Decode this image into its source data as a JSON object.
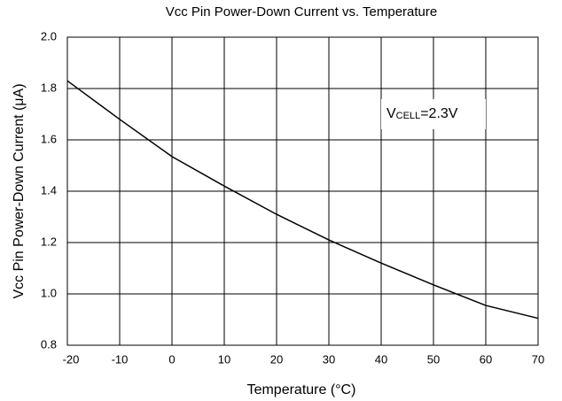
{
  "chart_data": {
    "type": "line",
    "title": "Vcc Pin Power-Down Current vs. Temperature",
    "xlabel": "Temperature (°C)",
    "ylabel": "Vcc Pin Power-Down Current (μA)",
    "annotation": {
      "main": "V",
      "sub": "CELL",
      "rest": "=2.3V"
    },
    "x": [
      -20,
      -10,
      0,
      10,
      20,
      30,
      40,
      50,
      60,
      70
    ],
    "series": [
      {
        "color": "#000000",
        "values": [
          1.83,
          1.68,
          1.535,
          1.42,
          1.31,
          1.21,
          1.12,
          1.035,
          0.955,
          0.905
        ]
      }
    ],
    "xlim": [
      -20,
      70
    ],
    "xticks": [
      -20,
      -10,
      0,
      10,
      20,
      30,
      40,
      50,
      60,
      70
    ],
    "ylim": [
      0.8,
      2.0
    ],
    "yticks": [
      0.8,
      {
        "value": 1,
        "label": "1.0"
      },
      1.2,
      1.4,
      1.6,
      1.8,
      {
        "value": 2,
        "label": "2.0"
      }
    ],
    "grid": true
  }
}
